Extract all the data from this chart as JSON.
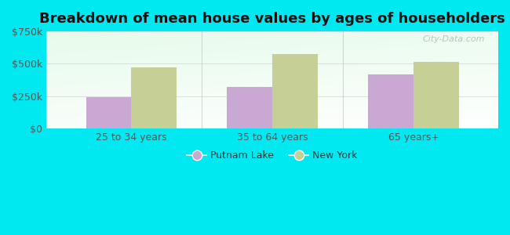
{
  "title": "Breakdown of mean house values by ages of householders",
  "categories": [
    "25 to 34 years",
    "35 to 64 years",
    "65 years+"
  ],
  "putnam_lake_values": [
    245000,
    320000,
    420000
  ],
  "new_york_values": [
    475000,
    575000,
    515000
  ],
  "putnam_lake_color": "#c9a8d4",
  "new_york_color": "#c5cf96",
  "ylim": [
    0,
    750000
  ],
  "yticks": [
    0,
    250000,
    500000,
    750000
  ],
  "ytick_labels": [
    "$0",
    "$250k",
    "$500k",
    "$750k"
  ],
  "legend_putnam_label": "Putnam Lake",
  "legend_ny_label": "New York",
  "background_outer": "#00e8f0",
  "bar_width": 0.32,
  "title_fontsize": 13,
  "axis_label_fontsize": 9,
  "legend_fontsize": 9,
  "watermark": "City-Data.com"
}
